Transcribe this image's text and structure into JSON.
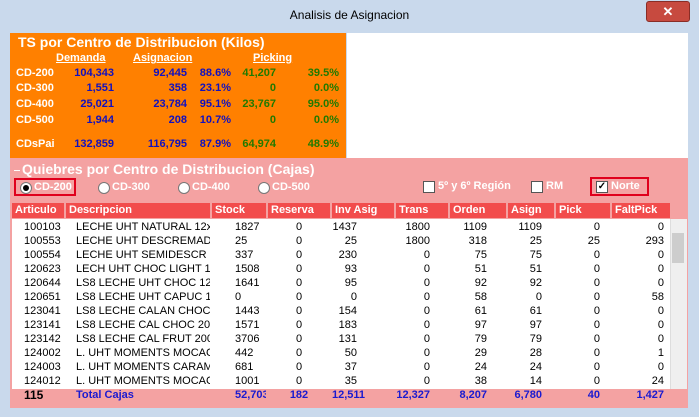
{
  "window": {
    "title": "Analisis de Asignacion"
  },
  "kilos": {
    "title": "TS por Centro de Distribucion (Kilos)",
    "headers": [
      "Demanda",
      "Asignacion",
      "Picking"
    ],
    "rows": [
      [
        "CD-200",
        "104,343",
        "92,445",
        "88.6%",
        "41,207",
        "39.5%"
      ],
      [
        "CD-300",
        "1,551",
        "358",
        "23.1%",
        "0",
        "0.0%"
      ],
      [
        "CD-400",
        "25,021",
        "23,784",
        "95.1%",
        "23,767",
        "95.0%"
      ],
      [
        "CD-500",
        "1,944",
        "208",
        "10.7%",
        "0",
        "0.0%"
      ],
      [
        "CDsPai",
        "132,859",
        "116,795",
        "87.9%",
        "64,974",
        "48.9%"
      ]
    ]
  },
  "quiebres": {
    "title": "Quiebres por Centro de Distribucion (Cajas)",
    "radios": [
      "CD-200",
      "CD-300",
      "CD-400",
      "CD-500"
    ],
    "checkboxes": [
      "5º y 6º Región",
      "RM",
      "Norte"
    ],
    "table": {
      "headers": [
        "Articulo",
        "Descripcion",
        "Stock",
        "Reserva",
        "Inv Asig",
        "Trans",
        "Orden",
        "Asign",
        "Pick",
        "FaltPick"
      ],
      "rows": [
        [
          "100103",
          "LECHE UHT NATURAL 12x",
          "1827",
          "0",
          "1437",
          "1800",
          "1109",
          "1109",
          "0",
          "0"
        ],
        [
          "100553",
          "LECHE UHT DESCREMAD 1",
          "25",
          "0",
          "25",
          "1800",
          "318",
          "25",
          "25",
          "293"
        ],
        [
          "100554",
          "LECHE UHT SEMIDESCR 12",
          "337",
          "0",
          "230",
          "0",
          "75",
          "75",
          "0",
          "0"
        ],
        [
          "120623",
          "LECH UHT CHOC LIGHT 12",
          "1508",
          "0",
          "93",
          "0",
          "51",
          "51",
          "0",
          "0"
        ],
        [
          "120644",
          "LS8 LECHE UHT CHOC 12x",
          "1641",
          "0",
          "95",
          "0",
          "92",
          "92",
          "0",
          "0"
        ],
        [
          "120651",
          "LS8 LECHE UHT CAPUC 12",
          "0",
          "0",
          "0",
          "0",
          "58",
          "0",
          "0",
          "58"
        ],
        [
          "123041",
          "LS8 LECHE CALAN CHOC 1",
          "1443",
          "0",
          "154",
          "0",
          "61",
          "61",
          "0",
          "0"
        ],
        [
          "123141",
          "LS8 LECHE CAL CHOC 200",
          "1571",
          "0",
          "183",
          "0",
          "97",
          "97",
          "0",
          "0"
        ],
        [
          "123142",
          "LS8 LECHE CAL FRUT 200",
          "3706",
          "0",
          "131",
          "0",
          "79",
          "79",
          "0",
          "0"
        ],
        [
          "124002",
          "L. UHT MOMENTS MOCAC",
          "442",
          "0",
          "50",
          "0",
          "29",
          "28",
          "0",
          "1"
        ],
        [
          "124003",
          "L. UHT MOMENTS CARAM",
          "681",
          "0",
          "37",
          "0",
          "24",
          "24",
          "0",
          "0"
        ],
        [
          "124012",
          "L. UHT MOMENTS MOCAC",
          "1001",
          "0",
          "35",
          "0",
          "38",
          "14",
          "0",
          "24"
        ]
      ],
      "totals": [
        "115",
        "Total Cajas",
        "52,703",
        "182",
        "12,511",
        "12,327",
        "8,207",
        "6,780",
        "40",
        "1,427"
      ]
    }
  }
}
